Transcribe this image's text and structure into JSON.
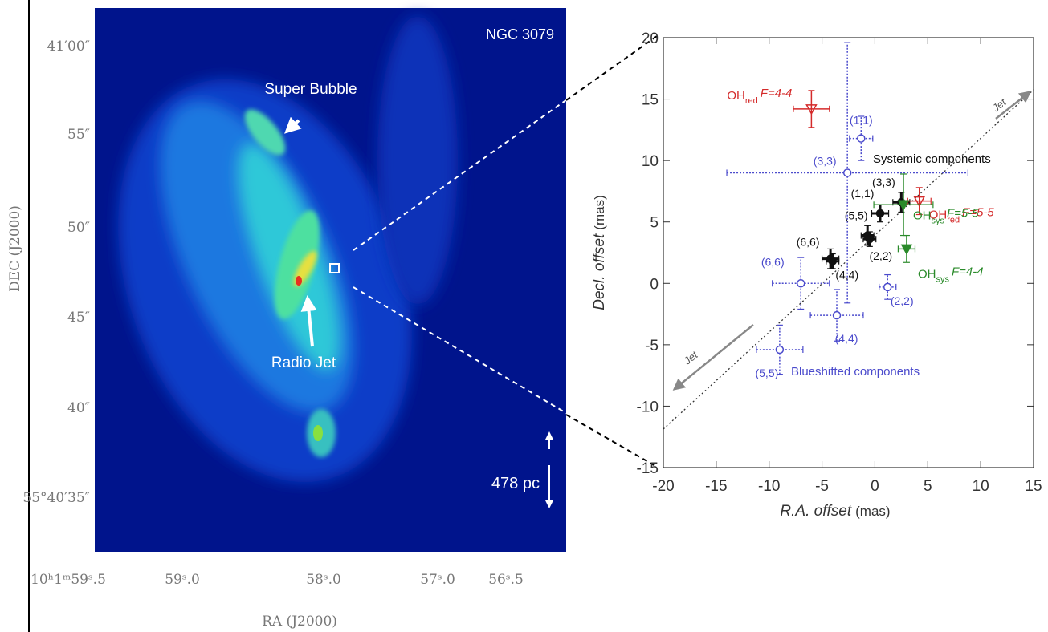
{
  "image_panel": {
    "title": "NGC 3079",
    "annotations": [
      "Super Bubble",
      "Radio Jet"
    ],
    "scale": "478 pc",
    "ylabel": "DEC (J2000)",
    "xlabel": "RA (J2000)",
    "dec_ticks": [
      "41′00″",
      "55″",
      "50″",
      "45″",
      "40″",
      "55°40′35″"
    ],
    "ra_ticks": [
      "10ʰ1ᵐ59ˢ.5",
      "59ˢ.0",
      "58ˢ.0",
      "57ˢ.0",
      "56ˢ.5"
    ]
  },
  "chart_data": {
    "type": "scatter",
    "xlabel": "R.A. offset",
    "xunit": "(mas)",
    "ylabel": "Decl. offset",
    "yunit": "(mas)",
    "xlim": [
      -20,
      15
    ],
    "ylim": [
      -15,
      20
    ],
    "xticks": [
      -20,
      -15,
      -10,
      -5,
      0,
      5,
      10,
      15
    ],
    "yticks": [
      -15,
      -10,
      -5,
      0,
      5,
      10,
      15,
      20
    ],
    "annotations": [
      "Jet",
      "Jet"
    ],
    "series": [
      {
        "name": "Blueshifted components",
        "color": "#4a4acc",
        "marker": "open-circle",
        "x": [
          -1.3,
          -2.6,
          -7.0,
          1.2,
          -3.6,
          -9.0
        ],
        "y": [
          11.8,
          9.0,
          0,
          -0.3,
          -2.6,
          -5.4
        ],
        "xerr": [
          1.1,
          11.4,
          2.7,
          0.8,
          2.5,
          2.2
        ],
        "yerr": [
          1.8,
          10.6,
          2.1,
          1.0,
          2.1,
          2.0
        ],
        "labels": [
          "(1,1)",
          "(3,3)",
          "(6,6)",
          "(2,2)",
          "(4,4)",
          "(5,5)"
        ]
      },
      {
        "name": "Systemic components",
        "color": "#111111",
        "marker": "filled-circle",
        "x": [
          -4.2,
          -0.7,
          0.5,
          2.5,
          -0.5,
          -4.0
        ],
        "y": [
          2.0,
          3.9,
          5.7,
          6.6,
          3.6,
          1.8
        ],
        "xerr": [
          0.8,
          0.6,
          0.8,
          0.8,
          0.6,
          0.6
        ],
        "yerr": [
          0.8,
          0.8,
          0.7,
          0.8,
          0.6,
          0.6
        ],
        "labels": [
          "(6,6)",
          "(5,5)",
          "(1,1)",
          "(3,3)",
          "(2,2)",
          "(4,4)"
        ]
      },
      {
        "color": "#d42a2a",
        "marker": "open-triangle",
        "x": [
          -6.0,
          4.2
        ],
        "y": [
          14.2,
          6.7
        ],
        "xerr": [
          1.7,
          1.1
        ],
        "yerr": [
          1.5,
          1.1
        ],
        "labels": [
          {
            "text": "OH",
            "sub": "red",
            "tag": "F=4-4"
          },
          {
            "text": "OH",
            "sub": "red",
            "tag": "F=5-5"
          }
        ]
      },
      {
        "color": "#2a8a2a",
        "marker": "filled-triangle",
        "x": [
          2.7,
          3.0
        ],
        "y": [
          6.4,
          2.8
        ],
        "xerr": [
          2.8,
          0.8
        ],
        "yerr": [
          2.5,
          1.1
        ],
        "labels": [
          {
            "text": "OH",
            "sub": "sys",
            "tag": "F=5-5"
          },
          {
            "text": "OH",
            "sub": "sys",
            "tag": "F=4-4"
          }
        ]
      }
    ]
  }
}
